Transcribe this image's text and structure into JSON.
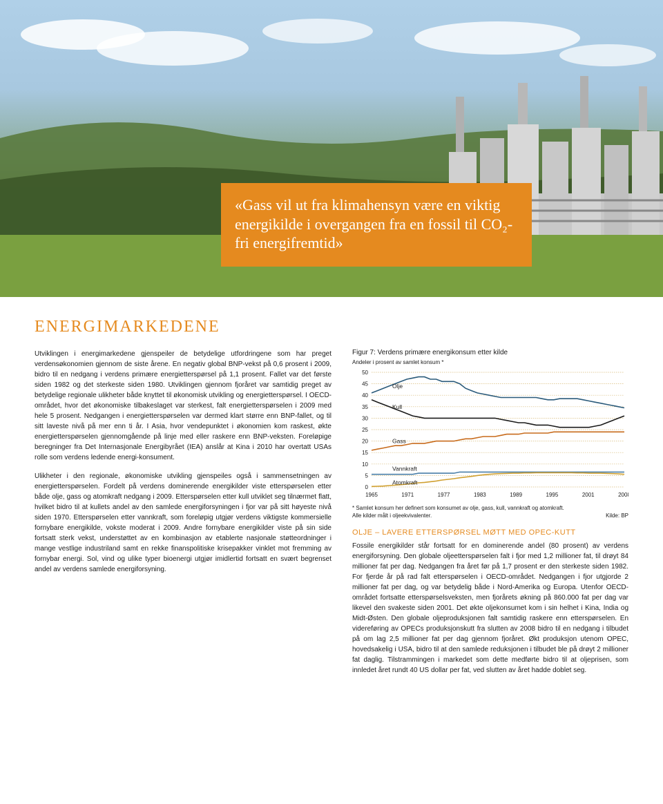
{
  "quote": "«Gass vil ut fra klimahensyn være en viktig energikilde i overgangen fra en fossil til CO₂-fri energifremtid»",
  "section_title": "ENERGIMARKEDENE",
  "para1": "Utviklingen i energimarkedene gjenspeiler de betydelige utfordringene som har preget verdensøkonomien gjennom de siste årene. En negativ global BNP-vekst på 0,6 prosent i 2009, bidro til en nedgang i verdens primære energietterspørsel på 1,1 prosent. Fallet var det første siden 1982 og det sterkeste siden 1980. Utviklingen gjennom fjoråret var samtidig preget av betydelige regionale ulikheter både knyttet til økonomisk utvikling og energietterspørsel. I OECD-området, hvor det økonomiske tilbakeslaget var sterkest, falt energietterspørselen i 2009 med hele 5 prosent. Nedgangen i energietterspørselen var dermed klart større enn BNP-fallet, og til sitt laveste nivå på mer enn ti år. I Asia, hvor vendepunktet i økonomien kom raskest, økte energietterspørselen gjennomgående på linje med eller raskere enn BNP-veksten. Foreløpige beregninger fra Det Internasjonale Energibyrået (IEA) anslår at Kina i 2010 har overtatt USAs rolle som verdens ledende energi-konsument.",
  "para2": "Ulikheter i den regionale, økonomiske utvikling gjenspeiles også i sammensetningen av energietterspørselen. Fordelt på verdens dominerende energikilder viste etterspørselen etter både olje, gass og atomkraft nedgang i 2009. Etterspørselen etter kull utviklet seg tilnærmet flatt, hvilket bidro til at kullets andel av den samlede energiforsyningen i fjor var på sitt høyeste nivå siden 1970. Etterspørselen etter vannkraft, som foreløpig utgjør verdens viktigste kommersielle fornybare energikilde, vokste moderat i 2009. Andre fornybare energikilder viste på sin side fortsatt sterk vekst, understøttet av en kombinasjon av etablerte nasjonale støtteordninger i mange vestlige industriland samt en rekke finanspolitiske krisepakker vinklet mot fremming av fornybar energi. Sol, vind og ulike typer bioenergi utgjør imidlertid fortsatt en svært begrenset andel av verdens samlede energiforsyning.",
  "figure": {
    "title": "Figur 7:  Verdens primære energikonsum etter kilde",
    "subtitle": "Andeler i prosent av samlet konsum *",
    "footnote": "* Samlet konsum her definert som konsumet av olje, gass, kull, vannkraft og atomkraft.",
    "source_left": "Alle kilder målt i oljeekvivalenter.",
    "source_right": "Kilde: BP",
    "ylim": [
      0,
      50
    ],
    "ytick_step": 5,
    "x_labels": [
      "1965",
      "1971",
      "1977",
      "1983",
      "1989",
      "1995",
      "2001",
      "2008"
    ],
    "grid_color": "#d8bb7a",
    "background": "#ffffff",
    "label_fontsize": 8,
    "series": [
      {
        "name": "Olje",
        "color": "#2a5a7a",
        "label_y": 44,
        "values": [
          41,
          42,
          43,
          44,
          45,
          46,
          47,
          47.5,
          48,
          48,
          47,
          47,
          46,
          46,
          46,
          45,
          43,
          42,
          41,
          40.5,
          40,
          39.5,
          39,
          39,
          39,
          39,
          39,
          39,
          39,
          38.5,
          38,
          38,
          38.5,
          38.5,
          38.5,
          38.5,
          38,
          37.5,
          37,
          36.5,
          36,
          35.5,
          35,
          34.5
        ]
      },
      {
        "name": "Kull",
        "color": "#1a1a1a",
        "label_y": 35,
        "values": [
          38,
          37,
          36,
          35,
          34,
          33,
          32,
          31,
          30.5,
          30,
          30,
          30,
          30,
          30,
          30,
          30,
          30,
          30,
          30,
          30,
          30,
          30,
          29.5,
          29,
          28.5,
          28,
          28,
          27.5,
          27,
          27,
          27,
          26.5,
          26,
          26,
          26,
          26,
          26,
          26,
          26.5,
          27,
          28,
          29,
          30,
          31
        ]
      },
      {
        "name": "Gass",
        "color": "#c76a1a",
        "label_y": 20,
        "values": [
          16,
          16.5,
          17,
          17.5,
          18,
          18,
          18.5,
          19,
          19,
          19,
          19.5,
          20,
          20,
          20,
          20,
          20.5,
          21,
          21,
          21.5,
          22,
          22,
          22,
          22.5,
          23,
          23,
          23,
          23.5,
          23.5,
          23.5,
          23.5,
          23.5,
          24,
          24,
          24,
          24,
          24,
          24,
          24,
          24,
          24,
          24,
          24,
          24,
          24
        ]
      },
      {
        "name": "Vannkraft",
        "color": "#4a7fa8",
        "label_y": 8,
        "values": [
          5.5,
          5.5,
          5.5,
          5.5,
          5.5,
          5.5,
          5.5,
          5.5,
          6,
          6,
          6,
          6,
          6,
          6,
          6,
          6.5,
          6.5,
          6.5,
          6.5,
          6.5,
          6.5,
          6.5,
          6.5,
          6.5,
          6.5,
          6.5,
          6.5,
          6.5,
          6.5,
          6.5,
          6.5,
          6.5,
          6.5,
          6.5,
          6.5,
          6.5,
          6.5,
          6.5,
          6.5,
          6.5,
          6.5,
          6.5,
          6.5,
          6.5
        ]
      },
      {
        "name": "Atomkraft",
        "color": "#d0a030",
        "label_y": 2,
        "values": [
          0.2,
          0.3,
          0.4,
          0.6,
          0.8,
          1,
          1.2,
          1.5,
          1.8,
          2,
          2.3,
          2.6,
          3,
          3.3,
          3.6,
          4,
          4.3,
          4.6,
          5,
          5.3,
          5.5,
          5.7,
          5.8,
          5.9,
          6,
          6,
          6.1,
          6.1,
          6.2,
          6.2,
          6.2,
          6.2,
          6.2,
          6.2,
          6.2,
          6.1,
          6.1,
          6,
          6,
          6,
          5.9,
          5.8,
          5.7,
          5.5
        ]
      }
    ]
  },
  "sub_heading": "OLJE – LAVERE ETTERSPØRSEL MØTT MED OPEC-KUTT",
  "para3": "Fossile energikilder står fortsatt for en dominerende andel (80 prosent) av verdens energiforsyning. Den globale oljeetterspørselen falt i fjor med 1,2 millioner fat, til drøyt 84 millioner fat per dag. Nedgangen fra året før på 1,7 prosent er den sterkeste siden 1982. For fjerde år på rad falt etterspørselen i OECD-området. Nedgangen i fjor utgjorde 2 millioner fat per dag, og var betydelig både i Nord-Amerika og Europa. Utenfor OECD-området fortsatte etterspørselsveksten, men fjorårets økning på 860.000 fat per dag var likevel den svakeste siden 2001. Det økte oljekonsumet kom i sin helhet i Kina, India og Midt-Østen. Den globale oljeproduksjonen falt samtidig raskere enn etterspørselen. En videreføring av OPECs produksjonskutt fra slutten av 2008 bidro til en nedgang i tilbudet på om lag 2,5 millioner fat per dag gjennom fjoråret. Økt produksjon utenom OPEC, hovedsakelig i USA, bidro til at den samlede reduksjonen i tilbudet ble på drøyt 2 millioner fat daglig. Tilstrammingen i markedet som dette medførte bidro til at oljeprisen, som innledet året rundt 40 US dollar per fat, ved slutten av året hadde doblet seg.",
  "colors": {
    "accent": "#e58a1f",
    "text": "#1a1a1a",
    "quote_bg": "#e58a1f",
    "quote_text": "#ffffff"
  }
}
